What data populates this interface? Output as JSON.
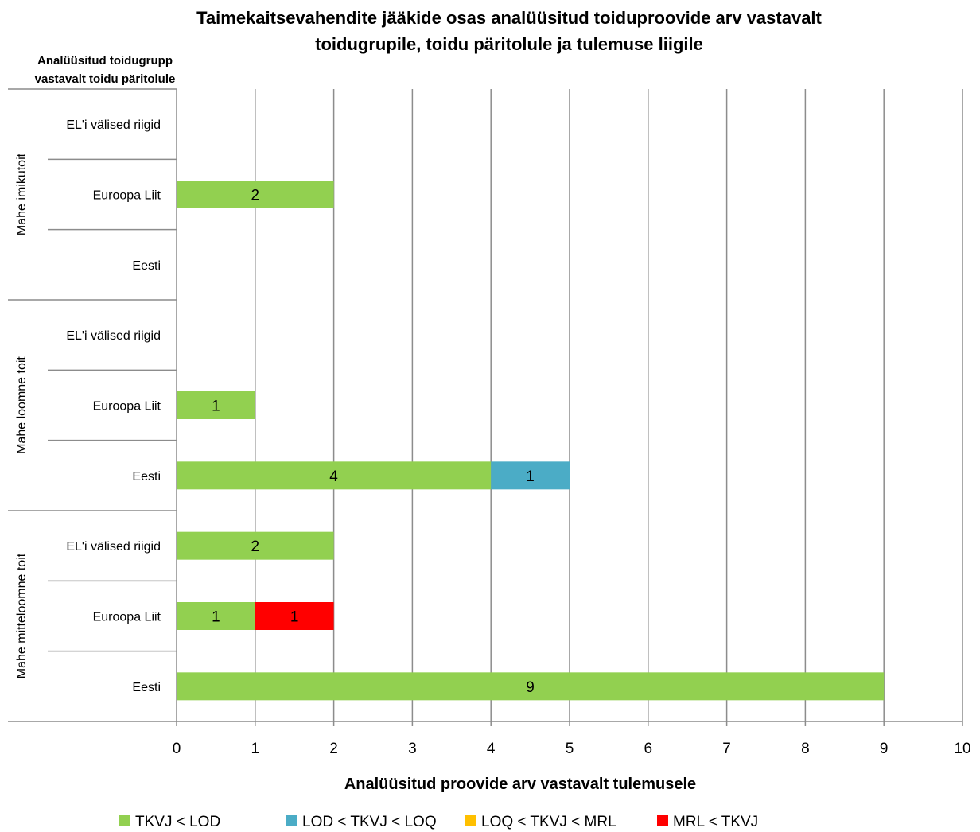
{
  "chart_data": {
    "type": "bar",
    "orientation": "horizontal",
    "stacked": true,
    "title_line1": "Taimekaitsevahendite jääkide osas analüüsitud toiduproovide arv vastavalt",
    "title_line2": "toidugrupile, toidu päritolule ja tulemuse liigile",
    "ylabel_line1": "Analüüsitud toidugrupp",
    "ylabel_line2": "vastavalt toidu päritolule",
    "xlabel": "Analüüsitud proovide arv vastavalt tulemusele",
    "xlim": [
      0,
      10
    ],
    "xticks": [
      "0",
      "1",
      "2",
      "3",
      "4",
      "5",
      "6",
      "7",
      "8",
      "9",
      "10"
    ],
    "grid": "vertical",
    "legend_position": "bottom",
    "groups": [
      {
        "name": "Mahe imikutoit",
        "categories": [
          "EL'i välised riigid",
          "Euroopa Liit",
          "Eesti"
        ]
      },
      {
        "name": "Mahe loomne toit",
        "categories": [
          "EL'i välised riigid",
          "Euroopa Liit",
          "Eesti"
        ]
      },
      {
        "name": "Mahe mitteloomne toit",
        "categories": [
          "EL'i välised riigid",
          "Euroopa Liit",
          "Eesti"
        ]
      }
    ],
    "series": [
      {
        "name": "TKVJ < LOD",
        "color": "#92d050",
        "values": [
          [
            0,
            2,
            0
          ],
          [
            0,
            1,
            4
          ],
          [
            2,
            1,
            9
          ]
        ]
      },
      {
        "name": "LOD < TKVJ < LOQ",
        "color": "#4bacc6",
        "values": [
          [
            0,
            0,
            0
          ],
          [
            0,
            0,
            1
          ],
          [
            0,
            0,
            0
          ]
        ]
      },
      {
        "name": "LOQ < TKVJ < MRL",
        "color": "#ffc000",
        "values": [
          [
            0,
            0,
            0
          ],
          [
            0,
            0,
            0
          ],
          [
            0,
            0,
            0
          ]
        ]
      },
      {
        "name": "MRL < TKVJ",
        "color": "#ff0000",
        "values": [
          [
            0,
            0,
            0
          ],
          [
            0,
            0,
            0
          ],
          [
            0,
            1,
            0
          ]
        ]
      }
    ]
  }
}
